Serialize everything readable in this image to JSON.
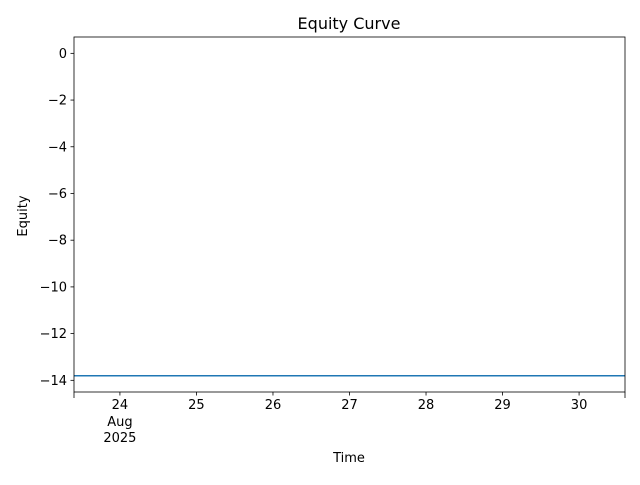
{
  "chart_data": {
    "type": "line",
    "title": "Equity Curve",
    "xlabel": "Time",
    "ylabel": "Equity",
    "grid": false,
    "legend": null,
    "x_start": "2025-08-23",
    "x_end": "2025-08-30",
    "xlim": [
      "2025-08-23",
      "2025-08-30"
    ],
    "ylim": [
      -14.5,
      0.7
    ],
    "yticks": [
      0,
      -2,
      -4,
      -6,
      -8,
      -10,
      -12,
      -14
    ],
    "ytick_labels": [
      "0",
      "−2",
      "−4",
      "−6",
      "−8",
      "−10",
      "−12",
      "−14"
    ],
    "xticks": [
      {
        "day": "24",
        "month": "Aug",
        "year": "2025"
      },
      {
        "day": "25"
      },
      {
        "day": "26"
      },
      {
        "day": "27"
      },
      {
        "day": "28"
      },
      {
        "day": "29"
      },
      {
        "day": "30"
      }
    ],
    "series": [
      {
        "color": "#1f77b4",
        "x": [
          "2025-08-23",
          "2025-08-30"
        ],
        "y": [
          -13.8,
          -13.8
        ]
      }
    ]
  }
}
